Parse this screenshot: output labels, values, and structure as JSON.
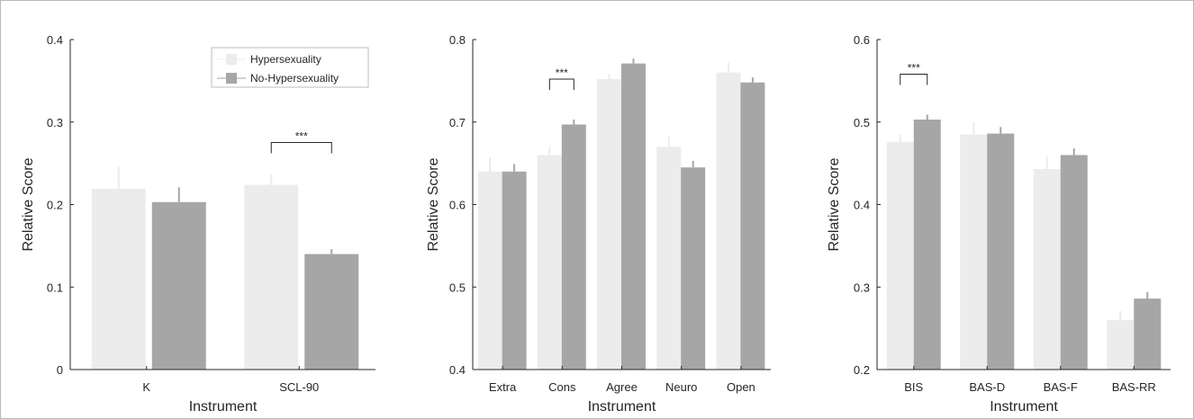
{
  "legend": {
    "items": [
      {
        "label": "Hypersexuality",
        "color": "#ececec"
      },
      {
        "label": "No-Hypersexuality",
        "color": "#a6a6a6"
      }
    ]
  },
  "colors": {
    "hyper": "#ececec",
    "nohyper": "#a6a6a6",
    "axis": "#262626",
    "bracket": "#262626"
  },
  "chart_data": [
    {
      "type": "bar",
      "xlabel": "Instrument",
      "ylabel": "Relative Score",
      "ylim": [
        0,
        0.4
      ],
      "yticks": [
        0,
        0.1,
        0.2,
        0.3,
        0.4
      ],
      "ytick_labels": [
        "0",
        "0.1",
        "0.2",
        "0.3",
        "0.4"
      ],
      "categories": [
        "K",
        "SCL-90"
      ],
      "series": [
        {
          "name": "Hypersexuality",
          "values": [
            0.219,
            0.224
          ],
          "errors": [
            0.027,
            0.013
          ]
        },
        {
          "name": "No-Hypersexuality",
          "values": [
            0.203,
            0.14
          ],
          "errors": [
            0.018,
            0.006
          ]
        }
      ],
      "significance": [
        {
          "category": "SCL-90",
          "label": "***"
        }
      ],
      "legend_position": "top-right"
    },
    {
      "type": "bar",
      "xlabel": "Instrument",
      "ylabel": "Relative Score",
      "ylim": [
        0.4,
        0.8
      ],
      "yticks": [
        0.4,
        0.5,
        0.6,
        0.7,
        0.8
      ],
      "ytick_labels": [
        "0.4",
        "0.5",
        "0.6",
        "0.7",
        "0.8"
      ],
      "categories": [
        "Extra",
        "Cons",
        "Agree",
        "Neuro",
        "Open"
      ],
      "series": [
        {
          "name": "Hypersexuality",
          "values": [
            0.64,
            0.66,
            0.752,
            0.67,
            0.76
          ],
          "errors": [
            0.017,
            0.01,
            0.006,
            0.014,
            0.012
          ]
        },
        {
          "name": "No-Hypersexuality",
          "values": [
            0.64,
            0.697,
            0.771,
            0.645,
            0.748
          ],
          "errors": [
            0.009,
            0.006,
            0.006,
            0.008,
            0.006
          ]
        }
      ],
      "significance": [
        {
          "category": "Cons",
          "label": "***"
        }
      ]
    },
    {
      "type": "bar",
      "xlabel": "Instrument",
      "ylabel": "Relative Score",
      "ylim": [
        0.2,
        0.6
      ],
      "yticks": [
        0.2,
        0.3,
        0.4,
        0.5,
        0.6
      ],
      "ytick_labels": [
        "0.2",
        "0.3",
        "0.4",
        "0.5",
        "0.6"
      ],
      "categories": [
        "BIS",
        "BAS-D",
        "BAS-F",
        "BAS-RR"
      ],
      "series": [
        {
          "name": "Hypersexuality",
          "values": [
            0.476,
            0.485,
            0.443,
            0.26
          ],
          "errors": [
            0.009,
            0.015,
            0.015,
            0.011
          ]
        },
        {
          "name": "No-Hypersexuality",
          "values": [
            0.503,
            0.486,
            0.46,
            0.286
          ],
          "errors": [
            0.006,
            0.008,
            0.008,
            0.008
          ]
        }
      ],
      "significance": [
        {
          "category": "BIS",
          "label": "***"
        }
      ]
    }
  ]
}
